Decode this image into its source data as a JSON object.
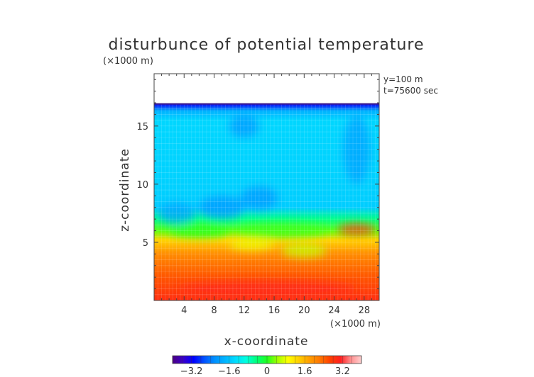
{
  "chart_data": {
    "type": "heatmap",
    "title": "disturbunce of potential temperature",
    "z_unit_label": "(×1000 m)",
    "x_unit_label": "(×1000 m)",
    "xlabel": "x-coordinate",
    "ylabel": "z-coordinate",
    "annotations": [
      "y=100 m",
      "t=75600 sec"
    ],
    "x_range": [
      0,
      30
    ],
    "z_range": [
      0,
      19.5
    ],
    "x_ticks": [
      4,
      8,
      12,
      16,
      20,
      24,
      28
    ],
    "z_ticks": [
      5,
      10,
      15
    ],
    "data_top_z": 16.9,
    "colorbar": {
      "range": [
        -4,
        4
      ],
      "ticks": [
        -3.2,
        -1.6,
        0,
        1.6,
        3.2
      ],
      "tick_labels": [
        "−3.2",
        "−1.6",
        "0",
        "1.6",
        "3.2"
      ],
      "colors": [
        "#4b0082",
        "#3a00c8",
        "#0000ff",
        "#0050ff",
        "#0090ff",
        "#00b4ff",
        "#00dcff",
        "#00ffe0",
        "#00ff7a",
        "#20ff20",
        "#a0ff00",
        "#ffff00",
        "#ffd000",
        "#ffa000",
        "#ff7800",
        "#ff4000",
        "#ff2020",
        "#ff9090",
        "#ffd0d0"
      ]
    },
    "z_profile": [
      {
        "z": 0.0,
        "value": 2.9
      },
      {
        "z": 2.0,
        "value": 2.5
      },
      {
        "z": 4.0,
        "value": 2.0
      },
      {
        "z": 5.2,
        "value": 1.3
      },
      {
        "z": 6.0,
        "value": 0.2
      },
      {
        "z": 7.0,
        "value": -0.5
      },
      {
        "z": 8.0,
        "value": -1.5
      },
      {
        "z": 11.0,
        "value": -1.45
      },
      {
        "z": 15.5,
        "value": -1.4
      },
      {
        "z": 16.3,
        "value": -1.8
      },
      {
        "z": 16.9,
        "value": -3.2
      }
    ]
  }
}
